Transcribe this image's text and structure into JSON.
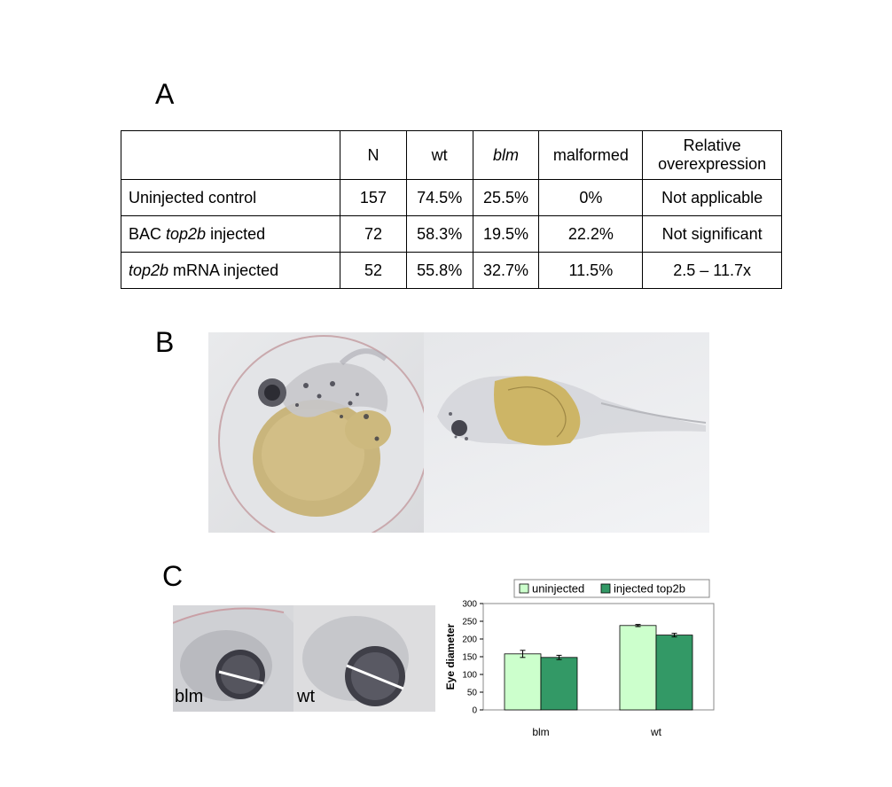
{
  "panels": {
    "a": "A",
    "b": "B",
    "c": "C"
  },
  "table": {
    "headers": [
      "",
      "N",
      "wt",
      "blm",
      "malformed",
      "Relative overexpression"
    ],
    "rows": [
      {
        "label_pre": "Uninjected control",
        "label_italic": "",
        "label_post": "",
        "n": "157",
        "wt": "74.5%",
        "blm": "25.5%",
        "malformed": "0%",
        "overexpression": "Not applicable"
      },
      {
        "label_pre": "BAC ",
        "label_italic": "top2b",
        "label_post": " injected",
        "n": "72",
        "wt": "58.3%",
        "blm": "19.5%",
        "malformed": "22.2%",
        "overexpression": "Not significant"
      },
      {
        "label_pre": "",
        "label_italic": "top2b",
        "label_post": " mRNA injected",
        "n": "52",
        "wt": "55.8%",
        "blm": "32.7%",
        "malformed": "11.5%",
        "overexpression": "2.5 – 11.7x"
      }
    ]
  },
  "photos": {
    "c_left_caption": "blm",
    "c_right_caption": "wt"
  },
  "chart_data": {
    "type": "bar",
    "categories": [
      "blm",
      "wt"
    ],
    "series": [
      {
        "name": "uninjected",
        "values": [
          158,
          238
        ],
        "errors": [
          10,
          3
        ],
        "color": "#ccffcc"
      },
      {
        "name": "injected top2b",
        "values": [
          148,
          211
        ],
        "errors": [
          6,
          5
        ],
        "color": "#339966"
      }
    ],
    "ylabel": "Eye diameter",
    "ylim": [
      0,
      300
    ],
    "yticks": [
      "0",
      "50",
      "100",
      "150",
      "200",
      "250",
      "300"
    ],
    "legend_position": "top",
    "grid": false
  }
}
